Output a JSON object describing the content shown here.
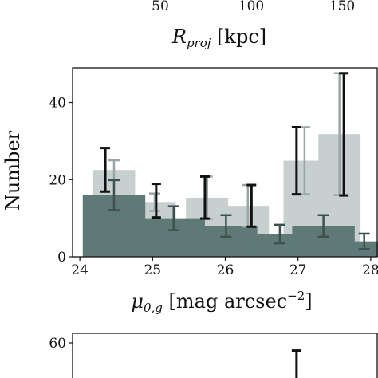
{
  "top_axis": {
    "ticks": [
      {
        "value": 50,
        "label": "50"
      },
      {
        "value": 100,
        "label": "100"
      },
      {
        "value": 150,
        "label": "150"
      }
    ],
    "xlabel_main": "R",
    "xlabel_sub": "proj",
    "xlabel_unit": "[kpc]"
  },
  "chart_data": [
    {
      "type": "bar",
      "xlabel_main": "μ",
      "xlabel_sub": "0,g",
      "xlabel_unit": "[mag arcsec",
      "xlabel_sup": "−2",
      "xlabel_close": "]",
      "ylabel": "Number",
      "xlim": [
        23.9,
        28.1
      ],
      "ylim": [
        0,
        49
      ],
      "x_ticks": [
        24,
        25,
        26,
        27,
        28
      ],
      "x_tick_labels": [
        "24",
        "25",
        "26",
        "27",
        "28"
      ],
      "y_ticks": [
        0,
        20,
        40
      ],
      "y_tick_labels": [
        "0",
        "20",
        "40"
      ],
      "series": [
        {
          "color": "#c7cfcf",
          "bars": [
            {
              "x_left": 24.18,
              "width": 0.58,
              "value": 22.5,
              "err_low": 19.8,
              "err_high": 25.0
            },
            {
              "x_left": 24.74,
              "width": 0.58,
              "value": 14.2,
              "err_low": 11.9,
              "err_high": 16.4
            },
            {
              "x_left": 25.46,
              "width": 0.58,
              "value": 15.3,
              "err_low": 9.8,
              "err_high": 20.8
            },
            {
              "x_left": 26.02,
              "width": 0.58,
              "value": 13.2,
              "err_low": 7.8,
              "err_high": 18.6
            },
            {
              "x_left": 26.8,
              "width": 0.58,
              "value": 24.9,
              "err_low": 16.2,
              "err_high": 33.6
            },
            {
              "x_left": 27.28,
              "width": 0.58,
              "value": 31.8,
              "err_low": 16.0,
              "err_high": 47.6
            }
          ]
        },
        {
          "color": "#5f7a76",
          "bars": [
            {
              "x_left": 24.04,
              "width": 0.86,
              "value": 16.0,
              "err_low": 12.1,
              "err_high": 19.9
            },
            {
              "x_left": 24.86,
              "width": 0.86,
              "value": 10.0,
              "err_low": 6.9,
              "err_high": 13.1
            },
            {
              "x_left": 25.58,
              "width": 0.86,
              "value": 8.0,
              "err_low": 5.2,
              "err_high": 10.8
            },
            {
              "x_left": 26.32,
              "width": 0.86,
              "value": 5.9,
              "err_low": 3.5,
              "err_high": 8.3
            },
            {
              "x_left": 26.92,
              "width": 0.86,
              "value": 8.0,
              "err_low": 5.2,
              "err_high": 10.8
            },
            {
              "x_left": 27.48,
              "width": 0.86,
              "value": 4.0,
              "err_low": 2.0,
              "err_high": 6.0
            }
          ]
        }
      ],
      "error_bars": [
        {
          "x": 24.35,
          "low": 16.9,
          "high": 28.2
        },
        {
          "x": 25.05,
          "low": 10.2,
          "high": 18.9
        },
        {
          "x": 25.72,
          "low": 9.9,
          "high": 20.8
        },
        {
          "x": 26.36,
          "low": 7.8,
          "high": 18.6
        },
        {
          "x": 26.98,
          "low": 16.2,
          "high": 33.6
        },
        {
          "x": 27.63,
          "low": 15.9,
          "high": 47.6
        }
      ]
    },
    {
      "type": "bar",
      "ylim": [
        0,
        65
      ],
      "y_ticks": [
        60
      ],
      "y_tick_labels": [
        "60"
      ],
      "error_bars": [
        {
          "x": 26.98,
          "low": 0,
          "high": 56
        }
      ]
    }
  ]
}
